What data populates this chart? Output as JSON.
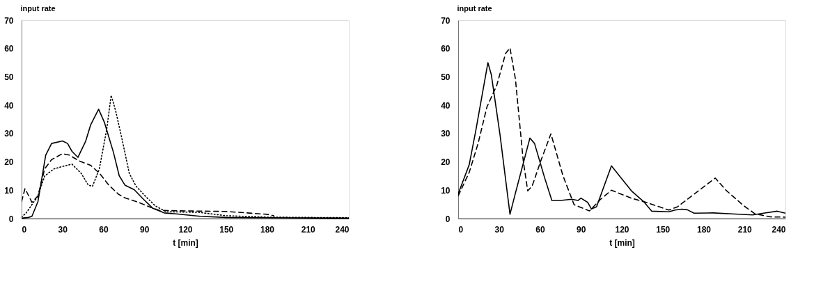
{
  "chart_data": [
    {
      "type": "line",
      "xlabel": "t [min]",
      "ylabel": "input rate",
      "xlim": [
        0,
        240
      ],
      "ylim": [
        0,
        70
      ],
      "xticks": [
        0,
        30,
        60,
        90,
        120,
        150,
        180,
        210,
        240
      ],
      "yticks": [
        0,
        10,
        20,
        30,
        40,
        50,
        60,
        70
      ],
      "grid": false,
      "legend": false,
      "marker": "none",
      "series": [
        {
          "color": "#000000",
          "line_style": "solid",
          "x": [
            0,
            5,
            7.6,
            12,
            17.7,
            22,
            30,
            33.7,
            37,
            41.3,
            47,
            50.6,
            56.5,
            60.7,
            67.4,
            71.6,
            75.8,
            82.6,
            89,
            96,
            104.5,
            114.6,
            131,
            150,
            180,
            240
          ],
          "values": [
            0.2,
            0.4,
            0.8,
            6,
            22.4,
            26.5,
            27.4,
            26.5,
            23.7,
            21.6,
            27.3,
            33,
            38.6,
            34,
            23.3,
            15.1,
            11.8,
            10.2,
            7,
            3.7,
            2,
            1.6,
            0.8,
            0.4,
            0.3,
            0.2
          ]
        },
        {
          "color": "#000000",
          "line_style": "dashed",
          "x": [
            0,
            2.5,
            7.6,
            12,
            16.9,
            22,
            30,
            35,
            42,
            50.6,
            57.3,
            64,
            71,
            75.8,
            86,
            94.4,
            101,
            120,
            150,
            180,
            185
          ],
          "values": [
            6,
            10.6,
            5.7,
            8,
            17.5,
            20.8,
            22.9,
            22.4,
            20.4,
            18.8,
            15.9,
            11.8,
            8.6,
            7.3,
            5.7,
            4,
            2.9,
            2.7,
            2.5,
            1.5,
            1
          ]
        },
        {
          "color": "#000000",
          "line_style": "dotted",
          "x": [
            0,
            3.4,
            11.8,
            16.9,
            23.6,
            30,
            37,
            43.8,
            48.9,
            52,
            57,
            62.4,
            65.7,
            69,
            74,
            79,
            84,
            91,
            98,
            106,
            130,
            150,
            180,
            240
          ],
          "values": [
            0.5,
            2,
            7.8,
            15,
            17.5,
            18.4,
            19.2,
            15.9,
            11.8,
            11.4,
            17.5,
            31.4,
            43.5,
            38,
            27.3,
            15.9,
            11.4,
            7.8,
            4.5,
            2.4,
            2.2,
            1,
            0.5,
            0.3
          ]
        }
      ]
    },
    {
      "type": "line",
      "xlabel": "t [min]",
      "ylabel": "input rate",
      "xlim": [
        0,
        240
      ],
      "ylim": [
        0,
        70
      ],
      "xticks": [
        0,
        30,
        60,
        90,
        120,
        150,
        180,
        210,
        240
      ],
      "yticks": [
        0,
        10,
        20,
        30,
        40,
        50,
        60,
        70
      ],
      "grid": false,
      "legend": false,
      "marker": "none",
      "series": [
        {
          "color": "#000000",
          "line_style": "solid",
          "x": [
            0,
            8.1,
            12.9,
            21.8,
            24.3,
            30.7,
            38,
            42,
            52.6,
            56,
            63.4,
            68.7,
            75,
            83.2,
            88,
            90,
            95,
            97.7,
            101.5,
            112.4,
            127,
            136,
            142,
            154.5,
            159,
            164,
            168,
            173,
            187,
            203,
            216,
            224,
            234,
            240
          ],
          "values": [
            8.7,
            19,
            31,
            55,
            50.8,
            29.5,
            1.5,
            9,
            28.4,
            26.5,
            14.4,
            6.4,
            6.4,
            6.8,
            6.4,
            7.2,
            5.7,
            3.4,
            4.2,
            18.6,
            9.8,
            6,
            2.6,
            2.4,
            3,
            3.3,
            3.1,
            1.9,
            2,
            1.6,
            1.3,
            1.9,
            2.6,
            1.9
          ]
        },
        {
          "color": "#000000",
          "line_style": "dashed",
          "x": [
            0,
            8.1,
            14.6,
            21.1,
            28.3,
            34.8,
            38,
            42,
            47.7,
            51,
            54.2,
            60.7,
            68,
            76.8,
            85,
            96.3,
            104.4,
            112.4,
            127,
            138,
            154.5,
            161,
            188.5,
            196.6,
            209.5,
            217.6,
            229,
            240
          ],
          "values": [
            8,
            16.3,
            26.5,
            39.4,
            47,
            58.3,
            60.2,
            49.2,
            20.5,
            9.8,
            11.4,
            20.5,
            29.9,
            15.2,
            4.9,
            2.7,
            6.8,
            10,
            7.2,
            5.7,
            3,
            4.2,
            14.3,
            9.9,
            4.5,
            1.7,
            0.6,
            0.5
          ]
        }
      ]
    }
  ]
}
